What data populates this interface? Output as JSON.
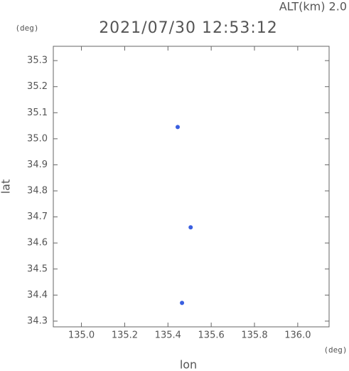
{
  "chart_data": {
    "type": "scatter",
    "title": "2021/07/30 12:53:12",
    "annotation": "ALT(km) 2.0",
    "x_label": "lon",
    "y_label": "lat",
    "x_unit": "(deg)",
    "y_unit": "(deg)",
    "series": [
      {
        "color": "#3a5fe0",
        "x": [
          135.445,
          135.505,
          135.465
        ],
        "values": [
          35.045,
          34.66,
          34.37
        ]
      }
    ],
    "xlim": [
      134.87,
      136.145
    ],
    "ylim": [
      34.278,
      35.355
    ],
    "xticks": [
      {
        "value": 135.0,
        "label": "135.0"
      },
      135.2,
      135.4,
      135.6,
      135.8,
      {
        "value": 136.0,
        "label": "136.0"
      }
    ],
    "yticks": [
      34.3,
      34.4,
      34.5,
      34.6,
      34.7,
      34.8,
      34.9,
      {
        "value": 35.0,
        "label": "35.0"
      },
      35.1,
      35.2,
      35.3
    ]
  }
}
